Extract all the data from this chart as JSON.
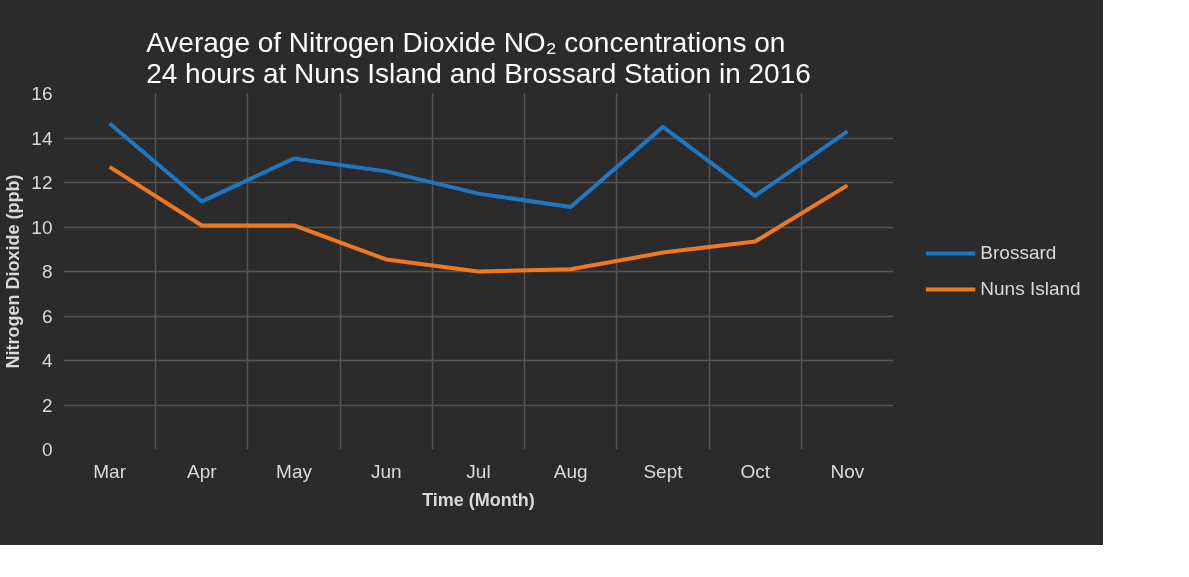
{
  "chart_data": {
    "type": "line",
    "title": "Average of Nitrogen Dioxide NO₂ concentrations on 24 hours at Nuns Island and Brossard Station in 2016",
    "xlabel": "Time (Month)",
    "ylabel": "Nitrogen Dioxide (ppb)",
    "categories": [
      "Mar",
      "Apr",
      "May",
      "Jun",
      "Jul",
      "Aug",
      "Sept",
      "Oct",
      "Nov"
    ],
    "series": [
      {
        "name": "Brossard",
        "color": "#1f77c4",
        "values": [
          14.65,
          11.15,
          13.08,
          12.5,
          11.5,
          10.9,
          14.5,
          11.4,
          14.3
        ]
      },
      {
        "name": "Nuns Island",
        "color": "#f07820",
        "values": [
          12.7,
          10.07,
          10.07,
          8.54,
          8.0,
          8.1,
          8.85,
          9.35,
          11.87
        ]
      }
    ],
    "ylim": [
      0,
      16
    ],
    "yticks": [
      0,
      2,
      4,
      6,
      8,
      10,
      12,
      14,
      16
    ],
    "grid": true,
    "legend": "right",
    "marker": "none",
    "line_style": "solid"
  }
}
